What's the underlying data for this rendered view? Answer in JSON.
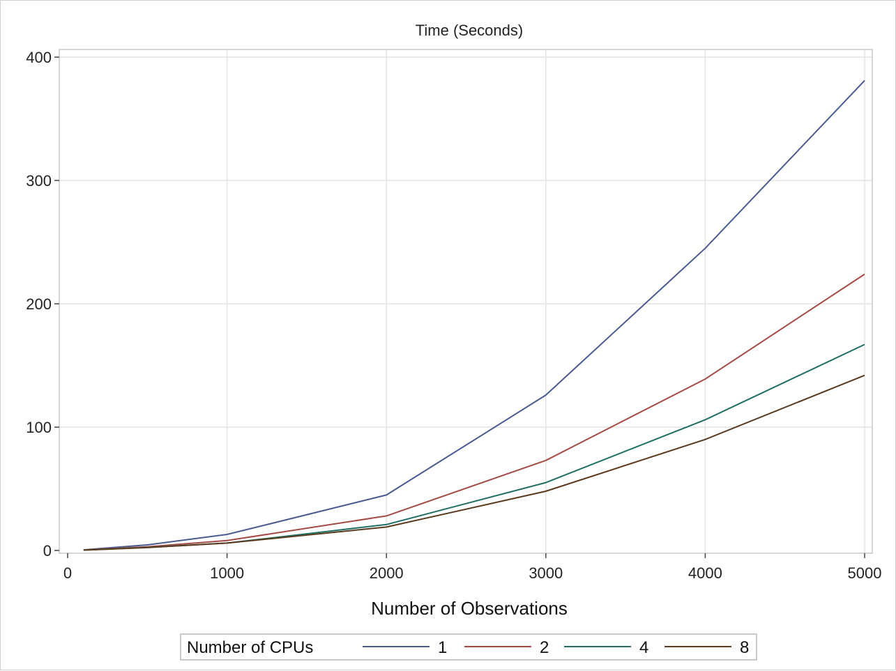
{
  "chart_data": {
    "type": "line",
    "title": "Time (Seconds)",
    "xlabel": "Number of Observations",
    "ylabel": "",
    "xlim": [
      0,
      5000
    ],
    "ylim": [
      0,
      400
    ],
    "x_ticks": [
      0,
      1000,
      2000,
      3000,
      4000,
      5000
    ],
    "y_ticks": [
      0,
      100,
      200,
      300,
      400
    ],
    "grid": true,
    "legend": {
      "title": "Number of CPUs",
      "placement": "bottom-center"
    },
    "x": [
      100,
      500,
      1000,
      2000,
      3000,
      4000,
      5000
    ],
    "series": [
      {
        "name": "1",
        "color": "#4a5a8f",
        "values": [
          0.5,
          4.5,
          13,
          45,
          126,
          245,
          381
        ]
      },
      {
        "name": "2",
        "color": "#a34a45",
        "values": [
          0.4,
          3,
          8,
          28,
          73,
          139,
          224
        ]
      },
      {
        "name": "4",
        "color": "#1f6e64",
        "values": [
          0.3,
          2.5,
          6,
          21,
          55,
          106,
          167
        ]
      },
      {
        "name": "8",
        "color": "#5a3a1e",
        "values": [
          0.3,
          2.3,
          6,
          19,
          48,
          90,
          142
        ]
      }
    ]
  }
}
